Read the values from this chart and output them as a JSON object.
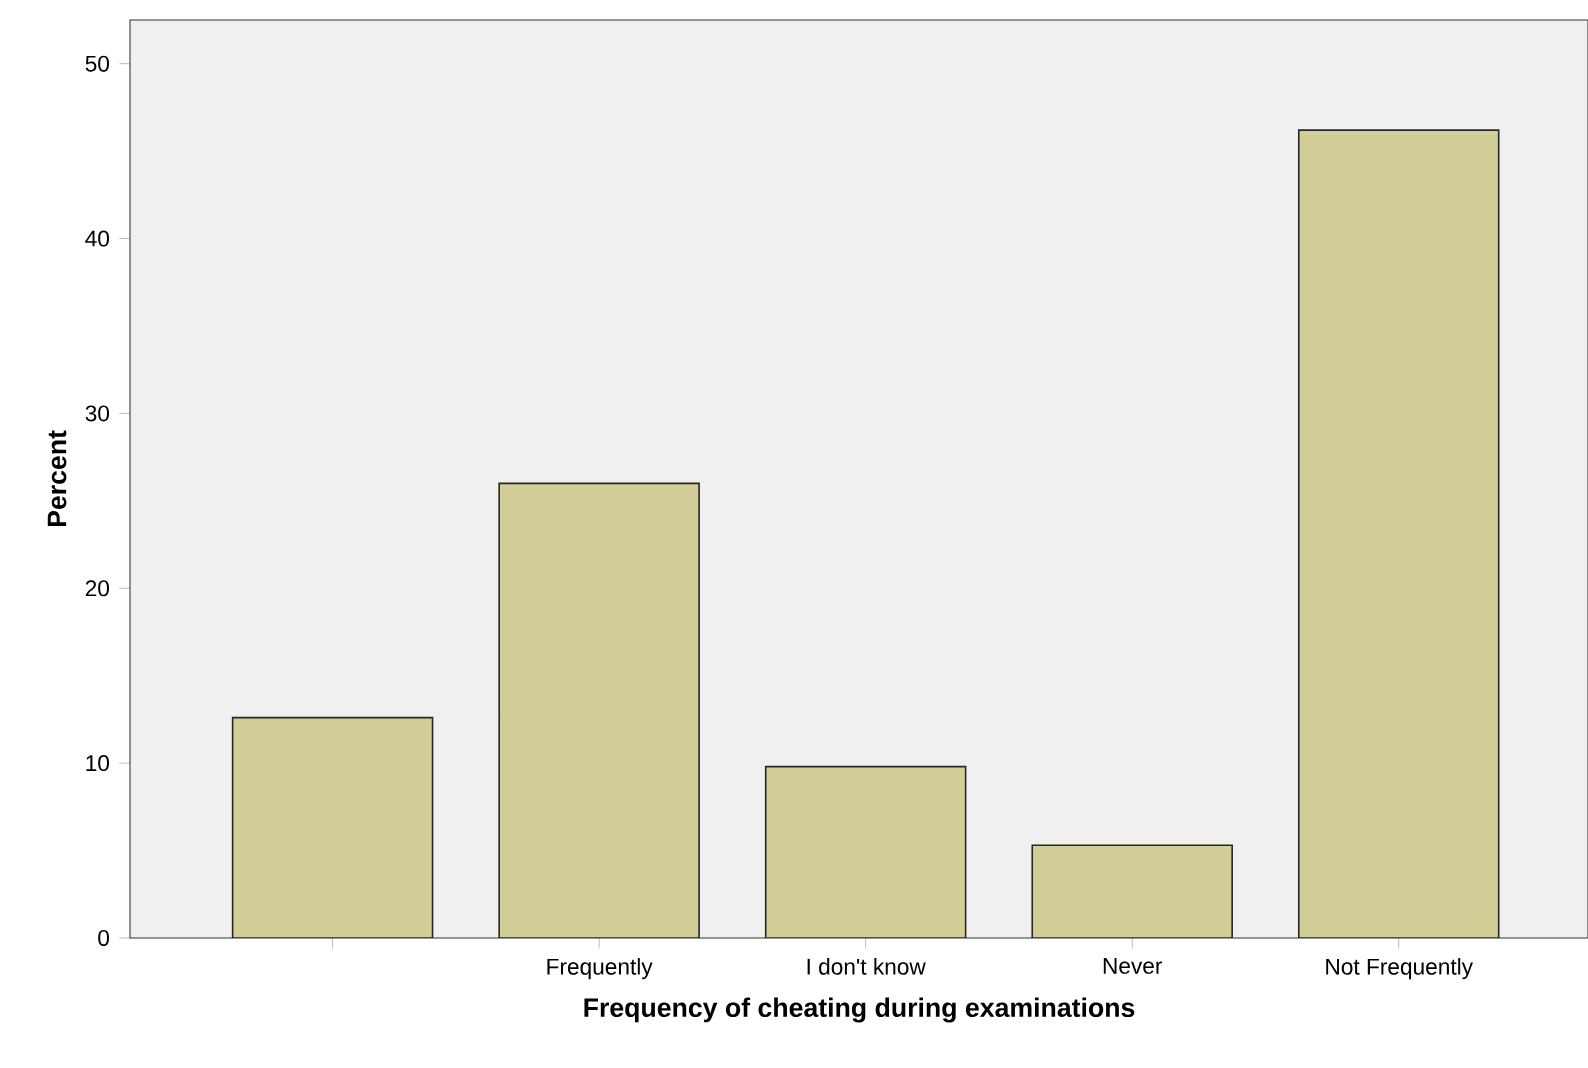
{
  "chart_data": {
    "type": "bar",
    "xlabel": "Frequency of cheating during examinations",
    "ylabel": "Percent",
    "categories": [
      null,
      "Frequently",
      "I don't know",
      "Never",
      "Not Frequently"
    ],
    "values": [
      12.6,
      26.0,
      9.8,
      5.3,
      46.2
    ],
    "color": "#d3ce97",
    "ylim": [
      0,
      52.5
    ],
    "yticks": [
      0,
      10,
      20,
      30,
      40,
      50
    ],
    "grid": false
  }
}
